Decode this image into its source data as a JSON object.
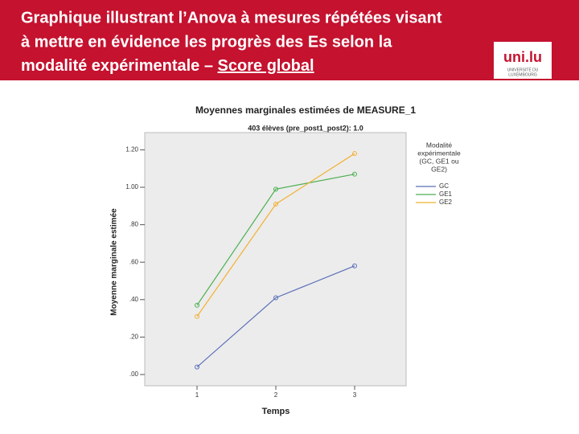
{
  "header": {
    "title_lines": [
      "Graphique illustrant l’Anova à mesures répétées visant",
      "à mettre en évidence les progrès des Es selon la",
      "modalité expérimentale – "
    ],
    "title_underlined": "Score global",
    "logo": "uni.lu",
    "logo_lines": [
      "UNIVERSITÉ DU",
      "LUXEMBOURG"
    ]
  },
  "chart_data": {
    "type": "line",
    "title": "Moyennes marginales estimées de MEASURE_1",
    "subtitle": "403 élèves (pre_post1_post2): 1.0",
    "x_label": "Temps",
    "y_label": "Moyenne marginale estimée",
    "categories": [
      "1",
      "2",
      "3"
    ],
    "series": [
      {
        "name": "GC",
        "color": "#5a6fb8",
        "values": [
          0.04,
          0.41,
          0.58
        ]
      },
      {
        "name": "GE1",
        "color": "#4caf50",
        "values": [
          0.37,
          0.99,
          1.07
        ]
      },
      {
        "name": "GE2",
        "color": "#f2b134",
        "values": [
          0.31,
          0.91,
          1.18
        ]
      }
    ],
    "legend_title": [
      "Modalité",
      "expérimentale",
      "(GC, GE1 ou",
      "GE2)"
    ],
    "ylim": [
      0,
      1.3
    ],
    "yticks": [
      {
        "value": 0,
        "label": ".00"
      },
      {
        "value": 0.2,
        "label": ".20"
      },
      {
        "value": 0.4,
        "label": ".40"
      },
      {
        "value": 0.6,
        "label": ".60"
      },
      {
        "value": 0.8,
        "label": ".80"
      },
      {
        "value": 1.0,
        "label": "1.00"
      },
      {
        "value": 1.2,
        "label": "1.20"
      }
    ],
    "legend": "right"
  }
}
